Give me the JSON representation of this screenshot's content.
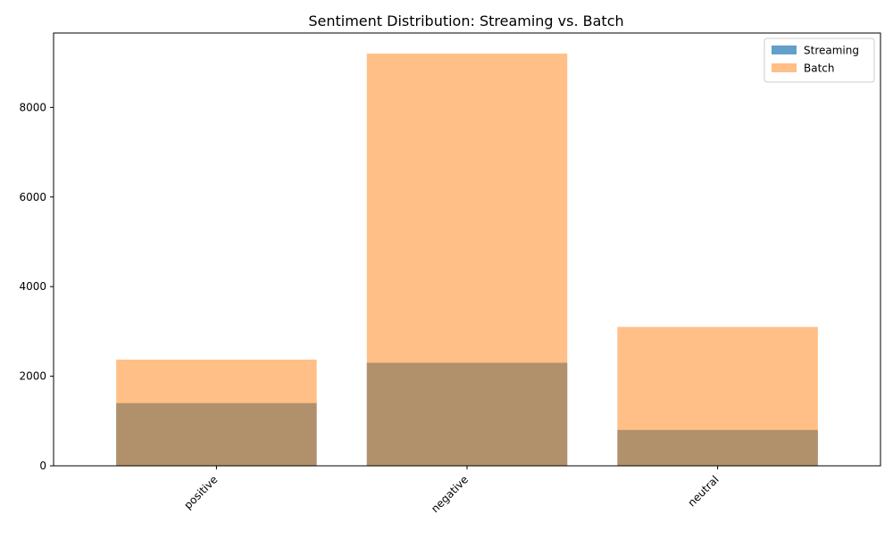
{
  "chart_data": {
    "type": "bar",
    "title": "Sentiment Distribution: Streaming vs. Batch",
    "xlabel": "",
    "ylabel": "",
    "categories": [
      "positive",
      "negative",
      "neutral"
    ],
    "series": [
      {
        "name": "Streaming",
        "values": [
          1400,
          2300,
          800
        ],
        "color": "#1f77b4",
        "opacity": 0.7
      },
      {
        "name": "Batch",
        "values": [
          2370,
          9200,
          3100
        ],
        "color": "#ff7f0e",
        "opacity": 0.5
      }
    ],
    "ylim": [
      0,
      9660
    ],
    "yticks": [
      0,
      2000,
      4000,
      6000,
      8000
    ],
    "ytick_labels": [
      "0",
      "2000",
      "4000",
      "6000",
      "8000"
    ],
    "grid": false,
    "legend_position": "top-right",
    "overlay": true
  }
}
